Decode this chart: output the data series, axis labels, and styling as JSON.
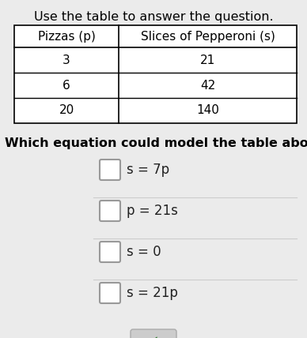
{
  "title": "Use the table to answer the question.",
  "col1_header": "Pizzas (p)",
  "col2_header": "Slices of Pepperoni (s)",
  "table_data": [
    [
      "3",
      "21"
    ],
    [
      "6",
      "42"
    ],
    [
      "20",
      "140"
    ]
  ],
  "question": "Which equation could model the table above?",
  "options": [
    "s = 7p",
    "p = 21s",
    "s = 0",
    "s = 21p"
  ],
  "bg_color": "#ebebeb",
  "title_fontsize": 11.5,
  "question_fontsize": 11.5,
  "option_fontsize": 12,
  "table_fontsize": 11
}
